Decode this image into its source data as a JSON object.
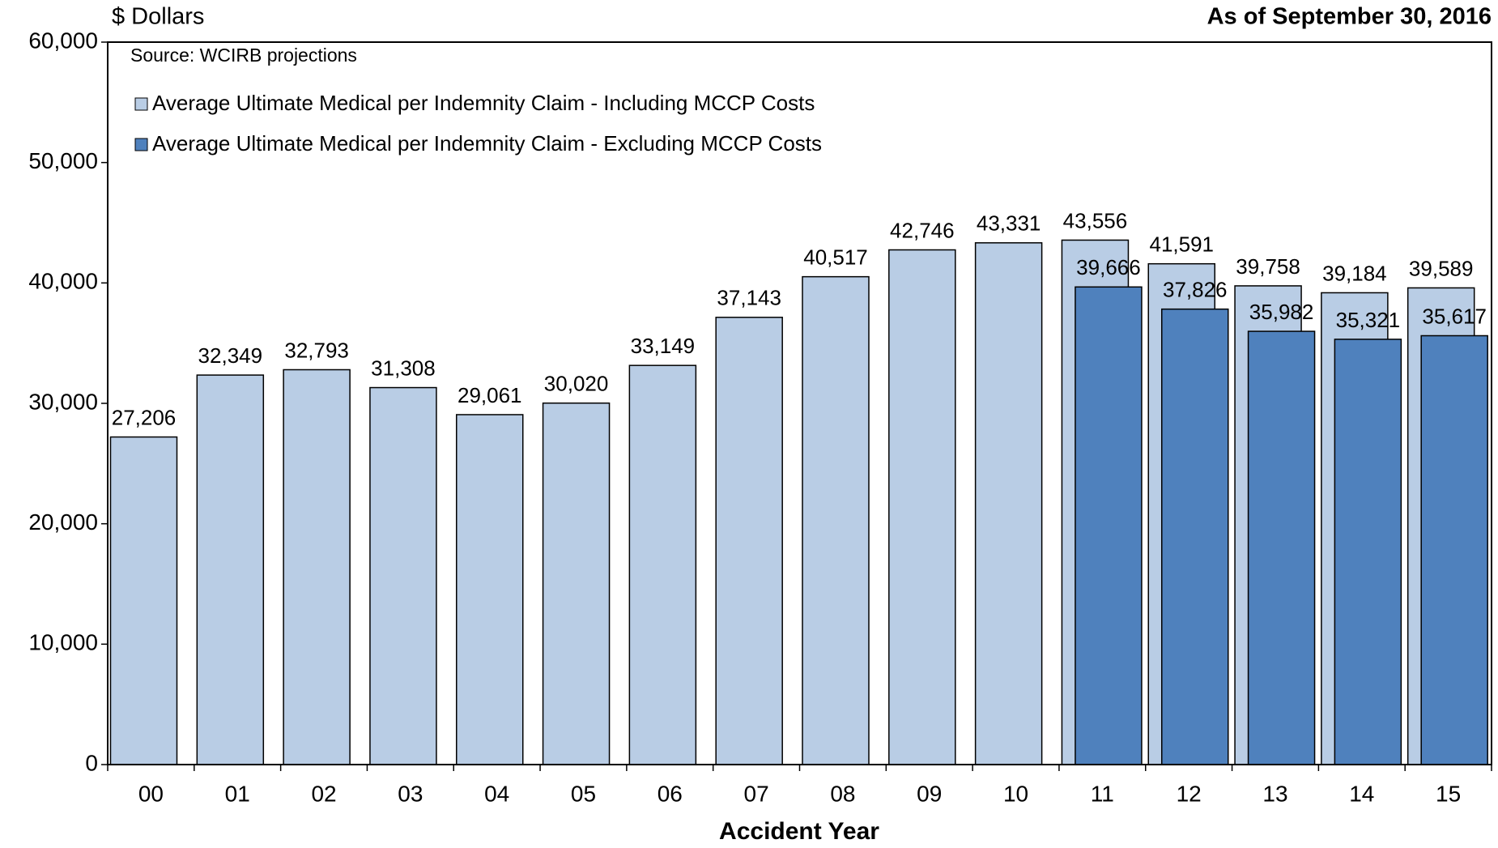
{
  "chart_data": {
    "type": "bar",
    "title": "$ Dollars",
    "subtitle": "As of September 30, 2016",
    "source": "Source: WCIRB projections",
    "x_label": "Accident Year",
    "categories": [
      "00",
      "01",
      "02",
      "03",
      "04",
      "05",
      "06",
      "07",
      "08",
      "09",
      "10",
      "11",
      "12",
      "13",
      "14",
      "15"
    ],
    "series": [
      {
        "name": "Average Ultimate Medical per Indemnity Claim - Including MCCP Costs",
        "color": "#b9cde5",
        "values": [
          27206,
          32349,
          32793,
          31308,
          29061,
          30020,
          33149,
          37143,
          40517,
          42746,
          43331,
          43556,
          41591,
          39758,
          39184,
          39589
        ],
        "value_labels": [
          "27,206",
          "32,349",
          "32,793",
          "31,308",
          "29,061",
          "30,020",
          "33,149",
          "37,143",
          "40,517",
          "42,746",
          "43,331",
          "43,556",
          "41,591",
          "39,758",
          "39,184",
          "39,589"
        ]
      },
      {
        "name": "Average Ultimate Medical per Indemnity Claim - Excluding MCCP Costs",
        "color": "#4f81bd",
        "values": [
          null,
          null,
          null,
          null,
          null,
          null,
          null,
          null,
          null,
          null,
          null,
          39666,
          37826,
          35982,
          35321,
          35617
        ],
        "value_labels": [
          null,
          null,
          null,
          null,
          null,
          null,
          null,
          null,
          null,
          null,
          null,
          "39,666",
          "37,826",
          "35,982",
          "35,321",
          "35,617"
        ]
      }
    ],
    "ylim": [
      0,
      60000
    ],
    "yticks": [
      0,
      {
        "value": 10000,
        "label": "10,000"
      },
      {
        "value": 20000,
        "label": "20,000"
      },
      {
        "value": 30000,
        "label": "30,000"
      },
      {
        "value": 40000,
        "label": "40,000"
      },
      {
        "value": 50000,
        "label": "50,000"
      },
      {
        "value": 60000,
        "label": "60,000"
      }
    ],
    "grid": false,
    "legend": "top-left"
  }
}
